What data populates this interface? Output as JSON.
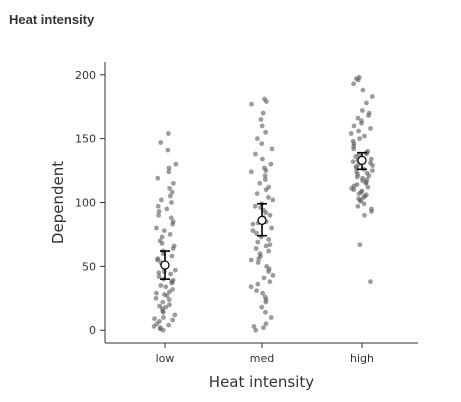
{
  "panel": {
    "title": "Heat intensity"
  },
  "chart_data": {
    "type": "scatter",
    "title": "",
    "xlabel": "Heat intensity",
    "ylabel": "Dependent",
    "categories": [
      "low",
      "med",
      "high"
    ],
    "ylim": [
      -10,
      210
    ],
    "yticks": [
      0,
      50,
      100,
      150,
      200
    ],
    "grid": false,
    "colors": {
      "points": "#5a5a5a",
      "mean_fill": "#ffffff",
      "error_bar": "#000000",
      "axis": "#333333"
    },
    "summary": [
      {
        "category": "low",
        "mean": 51,
        "lower": 40,
        "upper": 62
      },
      {
        "category": "med",
        "mean": 86,
        "lower": 74,
        "upper": 99
      },
      {
        "category": "high",
        "mean": 133,
        "lower": 126,
        "upper": 139
      }
    ],
    "points": {
      "low": [
        154,
        147,
        141,
        130,
        127,
        124,
        119,
        115,
        111,
        108,
        105,
        102,
        100,
        97,
        95,
        93,
        90,
        88,
        85,
        83,
        80,
        78,
        75,
        73,
        70,
        68,
        66,
        64,
        62,
        60,
        58,
        56,
        55,
        53,
        51,
        49,
        47,
        46,
        44,
        42,
        40,
        39,
        37,
        35,
        34,
        32,
        30,
        29,
        27,
        25,
        24,
        22,
        20,
        19,
        17,
        15,
        14,
        12,
        10,
        9,
        7,
        5,
        4,
        3,
        2,
        1,
        0,
        45,
        38,
        28,
        18,
        8
      ],
      "med": [
        181,
        179,
        177,
        170,
        165,
        160,
        155,
        150,
        146,
        142,
        138,
        134,
        130,
        127,
        124,
        121,
        118,
        115,
        112,
        110,
        107,
        104,
        102,
        99,
        97,
        94,
        92,
        90,
        88,
        85,
        83,
        80,
        78,
        76,
        73,
        71,
        69,
        67,
        64,
        62,
        60,
        58,
        55,
        53,
        50,
        48,
        46,
        43,
        41,
        38,
        36,
        34,
        31,
        29,
        26,
        24,
        22,
        18,
        14,
        10,
        5,
        3,
        2,
        0,
        125,
        96,
        84,
        66,
        56
      ],
      "high": [
        198,
        197,
        196,
        193,
        188,
        183,
        178,
        172,
        170,
        168,
        166,
        164,
        162,
        160,
        158,
        156,
        154,
        152,
        150,
        148,
        146,
        144,
        142,
        140,
        139,
        138,
        137,
        136,
        135,
        134,
        133,
        132,
        131,
        130,
        129,
        128,
        127,
        126,
        125,
        124,
        123,
        122,
        121,
        120,
        119,
        118,
        117,
        116,
        115,
        114,
        113,
        112,
        111,
        110,
        109,
        108,
        107,
        106,
        105,
        104,
        103,
        102,
        101,
        99,
        97,
        95,
        93,
        90,
        67,
        38
      ]
    }
  }
}
